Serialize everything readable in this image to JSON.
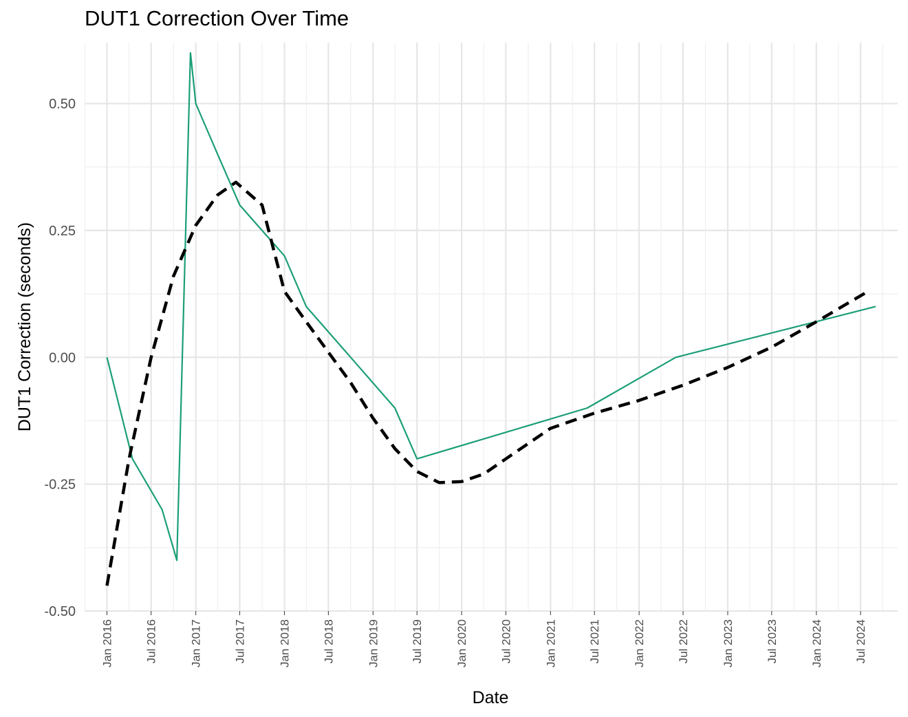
{
  "chart_data": {
    "type": "line",
    "title": "DUT1 Correction Over Time",
    "xlabel": "Date",
    "ylabel": "DUT1 Correction (seconds)",
    "xlim": [
      "2015-10-01",
      "2024-12-01"
    ],
    "ylim": [
      -0.5,
      0.62
    ],
    "y_ticks": [
      -0.5,
      -0.25,
      0.0,
      0.25,
      0.5
    ],
    "y_tick_labels": [
      "-0.50",
      "-0.25",
      "0.00",
      "0.25",
      "0.50"
    ],
    "x_ticks": [
      "2016-01-01",
      "2016-07-01",
      "2017-01-01",
      "2017-07-01",
      "2018-01-01",
      "2018-07-01",
      "2019-01-01",
      "2019-07-01",
      "2020-01-01",
      "2020-07-01",
      "2021-01-01",
      "2021-07-01",
      "2022-01-01",
      "2022-07-01",
      "2023-01-01",
      "2023-07-01",
      "2024-01-01",
      "2024-07-01"
    ],
    "x_tick_labels": [
      "Jan 2016",
      "Jul 2016",
      "Jan 2017",
      "Jul 2017",
      "Jan 2018",
      "Jul 2018",
      "Jan 2019",
      "Jul 2019",
      "Jan 2020",
      "Jul 2020",
      "Jan 2021",
      "Jul 2021",
      "Jan 2022",
      "Jul 2022",
      "Jan 2023",
      "Jul 2023",
      "Jan 2024",
      "Jul 2024"
    ],
    "grid": true,
    "legend": "none",
    "series": [
      {
        "style": "solid",
        "color": "#1b9e77",
        "points": [
          {
            "x": "2016-01-01",
            "y": 0.0
          },
          {
            "x": "2016-04-15",
            "y": -0.2
          },
          {
            "x": "2016-08-15",
            "y": -0.3
          },
          {
            "x": "2016-10-15",
            "y": -0.4
          },
          {
            "x": "2016-12-10",
            "y": 0.6
          },
          {
            "x": "2017-01-01",
            "y": 0.5
          },
          {
            "x": "2017-04-01",
            "y": 0.4
          },
          {
            "x": "2017-07-01",
            "y": 0.3
          },
          {
            "x": "2018-01-01",
            "y": 0.2
          },
          {
            "x": "2018-04-01",
            "y": 0.1
          },
          {
            "x": "2018-10-01",
            "y": 0.0
          },
          {
            "x": "2019-04-01",
            "y": -0.1
          },
          {
            "x": "2019-07-01",
            "y": -0.2
          },
          {
            "x": "2021-06-01",
            "y": -0.1
          },
          {
            "x": "2022-06-01",
            "y": 0.0
          },
          {
            "x": "2024-09-01",
            "y": 0.1
          }
        ]
      },
      {
        "style": "dashed",
        "color": "#000000",
        "points": [
          {
            "x": "2016-01-01",
            "y": -0.45
          },
          {
            "x": "2016-04-01",
            "y": -0.2
          },
          {
            "x": "2016-07-01",
            "y": 0.0
          },
          {
            "x": "2016-10-01",
            "y": 0.16
          },
          {
            "x": "2017-01-01",
            "y": 0.26
          },
          {
            "x": "2017-04-01",
            "y": 0.32
          },
          {
            "x": "2017-06-15",
            "y": 0.345
          },
          {
            "x": "2017-10-01",
            "y": 0.3
          },
          {
            "x": "2018-01-01",
            "y": 0.13
          },
          {
            "x": "2018-04-01",
            "y": 0.07
          },
          {
            "x": "2018-07-01",
            "y": 0.01
          },
          {
            "x": "2018-10-01",
            "y": -0.05
          },
          {
            "x": "2019-01-01",
            "y": -0.12
          },
          {
            "x": "2019-04-01",
            "y": -0.18
          },
          {
            "x": "2019-07-01",
            "y": -0.225
          },
          {
            "x": "2019-10-01",
            "y": -0.247
          },
          {
            "x": "2020-01-01",
            "y": -0.245
          },
          {
            "x": "2020-04-01",
            "y": -0.23
          },
          {
            "x": "2020-07-01",
            "y": -0.2
          },
          {
            "x": "2021-01-01",
            "y": -0.14
          },
          {
            "x": "2021-07-01",
            "y": -0.11
          },
          {
            "x": "2022-01-01",
            "y": -0.085
          },
          {
            "x": "2022-07-01",
            "y": -0.055
          },
          {
            "x": "2023-01-01",
            "y": -0.02
          },
          {
            "x": "2023-07-01",
            "y": 0.02
          },
          {
            "x": "2024-01-01",
            "y": 0.07
          },
          {
            "x": "2024-08-01",
            "y": 0.13
          }
        ]
      }
    ]
  }
}
